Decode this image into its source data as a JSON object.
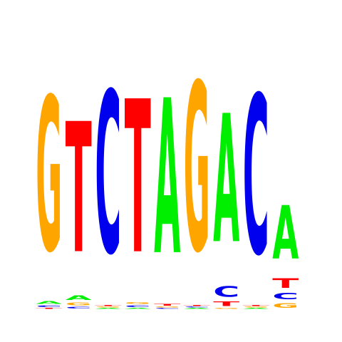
{
  "chart_data": {
    "type": "sequence-logo",
    "alphabet": [
      "A",
      "C",
      "G",
      "T"
    ],
    "colors": {
      "A": "#00ee00",
      "C": "#0000ee",
      "G": "#ffa500",
      "T": "#ff0000"
    },
    "y_unit": "bits",
    "ylim": [
      0,
      2
    ],
    "positions": [
      {
        "letters": [
          {
            "letter": "G",
            "bits": 1.62
          },
          {
            "letter": "A",
            "bits": 0.03
          },
          {
            "letter": "C",
            "bits": 0.02
          },
          {
            "letter": "T",
            "bits": 0.01
          }
        ]
      },
      {
        "letters": [
          {
            "letter": "T",
            "bits": 1.37
          },
          {
            "letter": "A",
            "bits": 0.05
          },
          {
            "letter": "G",
            "bits": 0.03
          },
          {
            "letter": "C",
            "bits": 0.02
          }
        ]
      },
      {
        "letters": [
          {
            "letter": "C",
            "bits": 1.7
          },
          {
            "letter": "A",
            "bits": 0.01
          },
          {
            "letter": "G",
            "bits": 0.01
          },
          {
            "letter": "T",
            "bits": 0.01
          }
        ]
      },
      {
        "letters": [
          {
            "letter": "T",
            "bits": 1.61
          },
          {
            "letter": "C",
            "bits": 0.02
          },
          {
            "letter": "G",
            "bits": 0.02
          },
          {
            "letter": "A",
            "bits": 0.01
          }
        ]
      },
      {
        "letters": [
          {
            "letter": "A",
            "bits": 1.63
          },
          {
            "letter": "T",
            "bits": 0.02
          },
          {
            "letter": "C",
            "bits": 0.01
          },
          {
            "letter": "G",
            "bits": 0.01
          }
        ]
      },
      {
        "letters": [
          {
            "letter": "G",
            "bits": 1.77
          },
          {
            "letter": "A",
            "bits": 0.01
          },
          {
            "letter": "C",
            "bits": 0.01
          },
          {
            "letter": "T",
            "bits": 0.01
          }
        ]
      },
      {
        "letters": [
          {
            "letter": "A",
            "bits": 1.35
          },
          {
            "letter": "C",
            "bits": 0.11
          },
          {
            "letter": "T",
            "bits": 0.05
          },
          {
            "letter": "G",
            "bits": 0.01
          }
        ]
      },
      {
        "letters": [
          {
            "letter": "C",
            "bits": 1.67
          },
          {
            "letter": "A",
            "bits": 0.01
          },
          {
            "letter": "G",
            "bits": 0.01
          },
          {
            "letter": "T",
            "bits": 0.01
          }
        ]
      },
      {
        "letters": [
          {
            "letter": "A",
            "bits": 0.56
          },
          {
            "letter": "T",
            "bits": 0.1
          },
          {
            "letter": "C",
            "bits": 0.07
          },
          {
            "letter": "G",
            "bits": 0.05
          }
        ]
      }
    ]
  }
}
